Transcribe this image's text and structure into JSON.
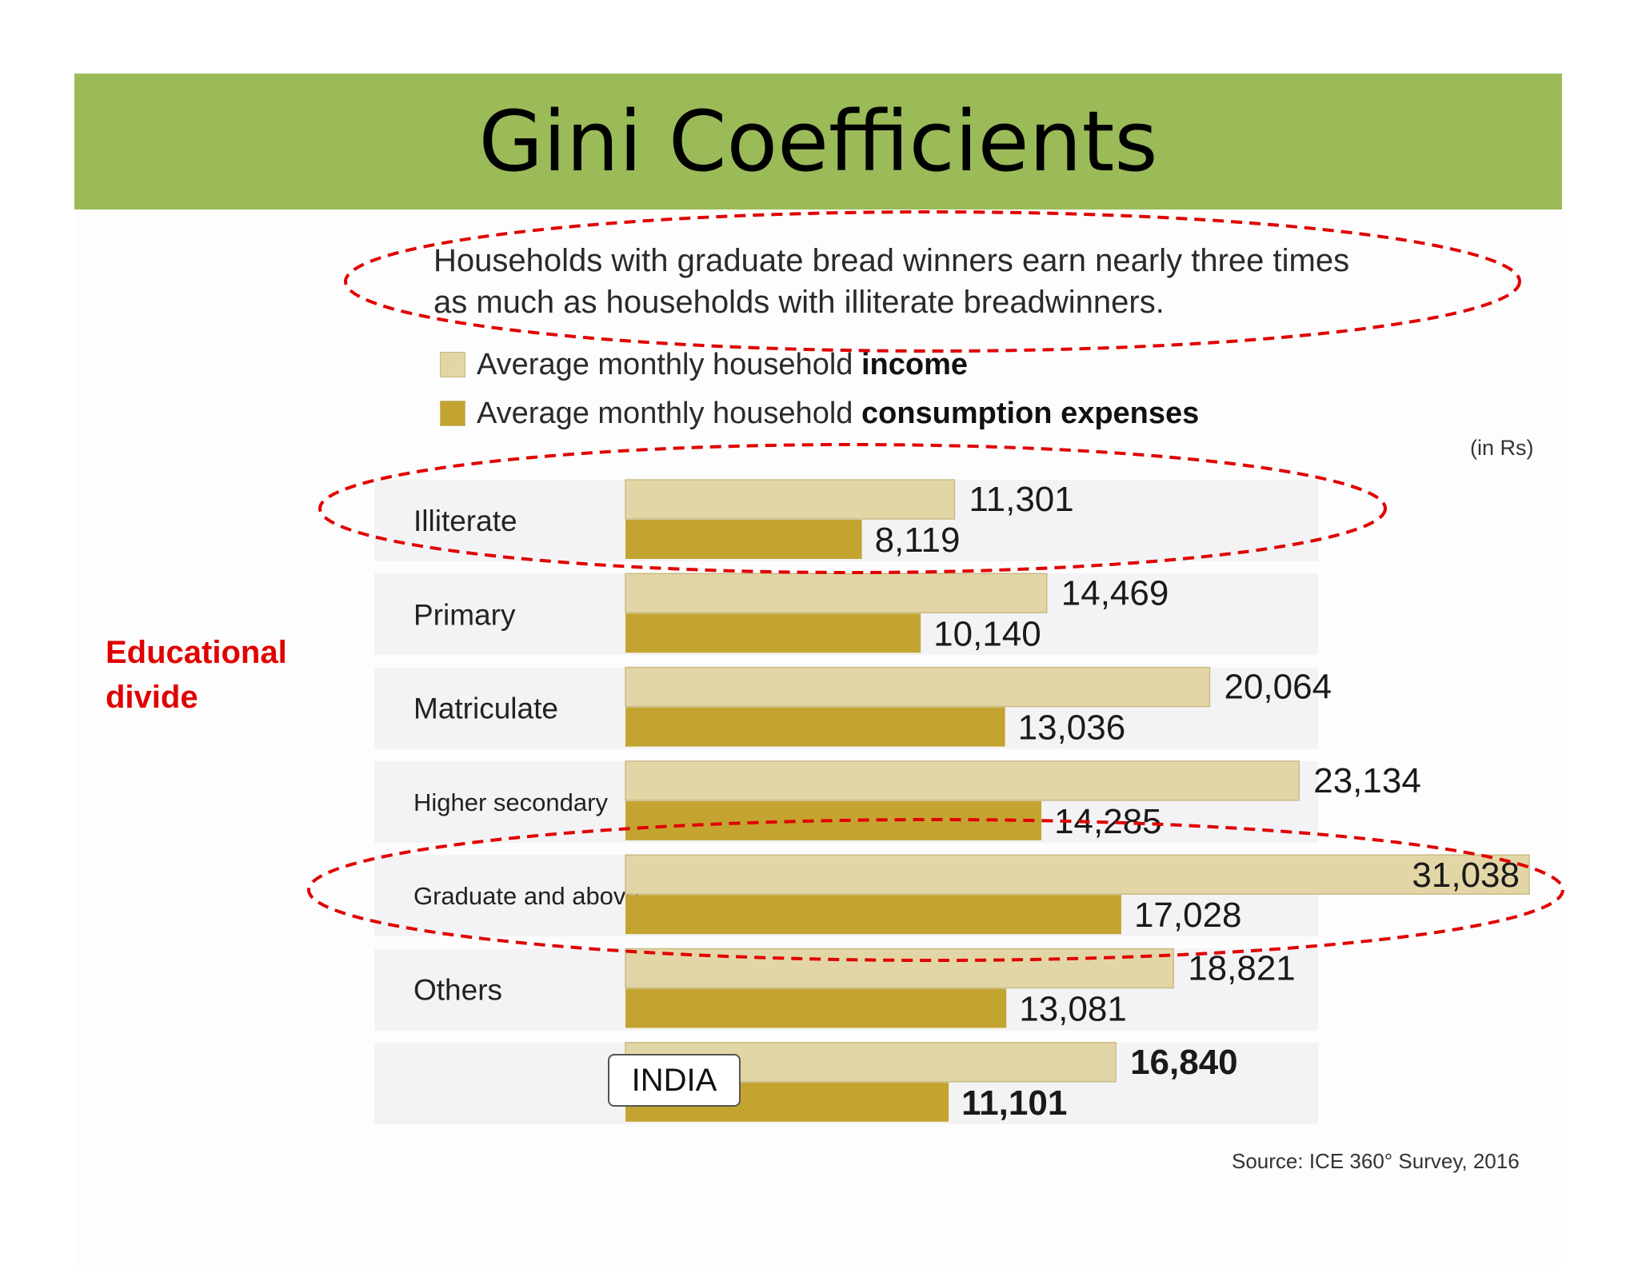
{
  "slide": {
    "title": "Gini Coefficients",
    "side_label": "Educational divide",
    "colors": {
      "header": "#9bbb59",
      "income": "#e3d6a6",
      "consumption": "#c4a430",
      "annotation": "#e00000"
    }
  },
  "chart_data": {
    "type": "bar",
    "orientation": "horizontal",
    "title": "Households with graduate bread winners earn nearly three times as much as households with illiterate breadwinners.",
    "unit": "(in Rs)",
    "source": "Source: ICE 360° Survey, 2016",
    "categories": [
      "Illiterate",
      "Primary",
      "Matriculate",
      "Higher secondary",
      "Graduate and above",
      "Others",
      "INDIA"
    ],
    "series": [
      {
        "name": "Average monthly household income",
        "name_plain": "Average monthly household ",
        "name_bold": "income",
        "values": [
          11301,
          14469,
          20064,
          23134,
          31038,
          18821,
          16840
        ],
        "labels": [
          "11,301",
          "14,469",
          "20,064",
          "23,134",
          "31,038",
          "18,821",
          "16,840"
        ]
      },
      {
        "name": "Average monthly household consumption expenses",
        "name_plain": "Average monthly household ",
        "name_bold": "consumption  expenses",
        "values": [
          8119,
          10140,
          13036,
          14285,
          17028,
          13081,
          11101
        ],
        "labels": [
          "8,119",
          "10,140",
          "13,036",
          "14,285",
          "17,028",
          "13,081",
          "11,101"
        ]
      }
    ],
    "xlim": [
      0,
      31038
    ],
    "highlighted_categories": [
      "Illiterate",
      "Graduate and above"
    ],
    "grid": false
  }
}
